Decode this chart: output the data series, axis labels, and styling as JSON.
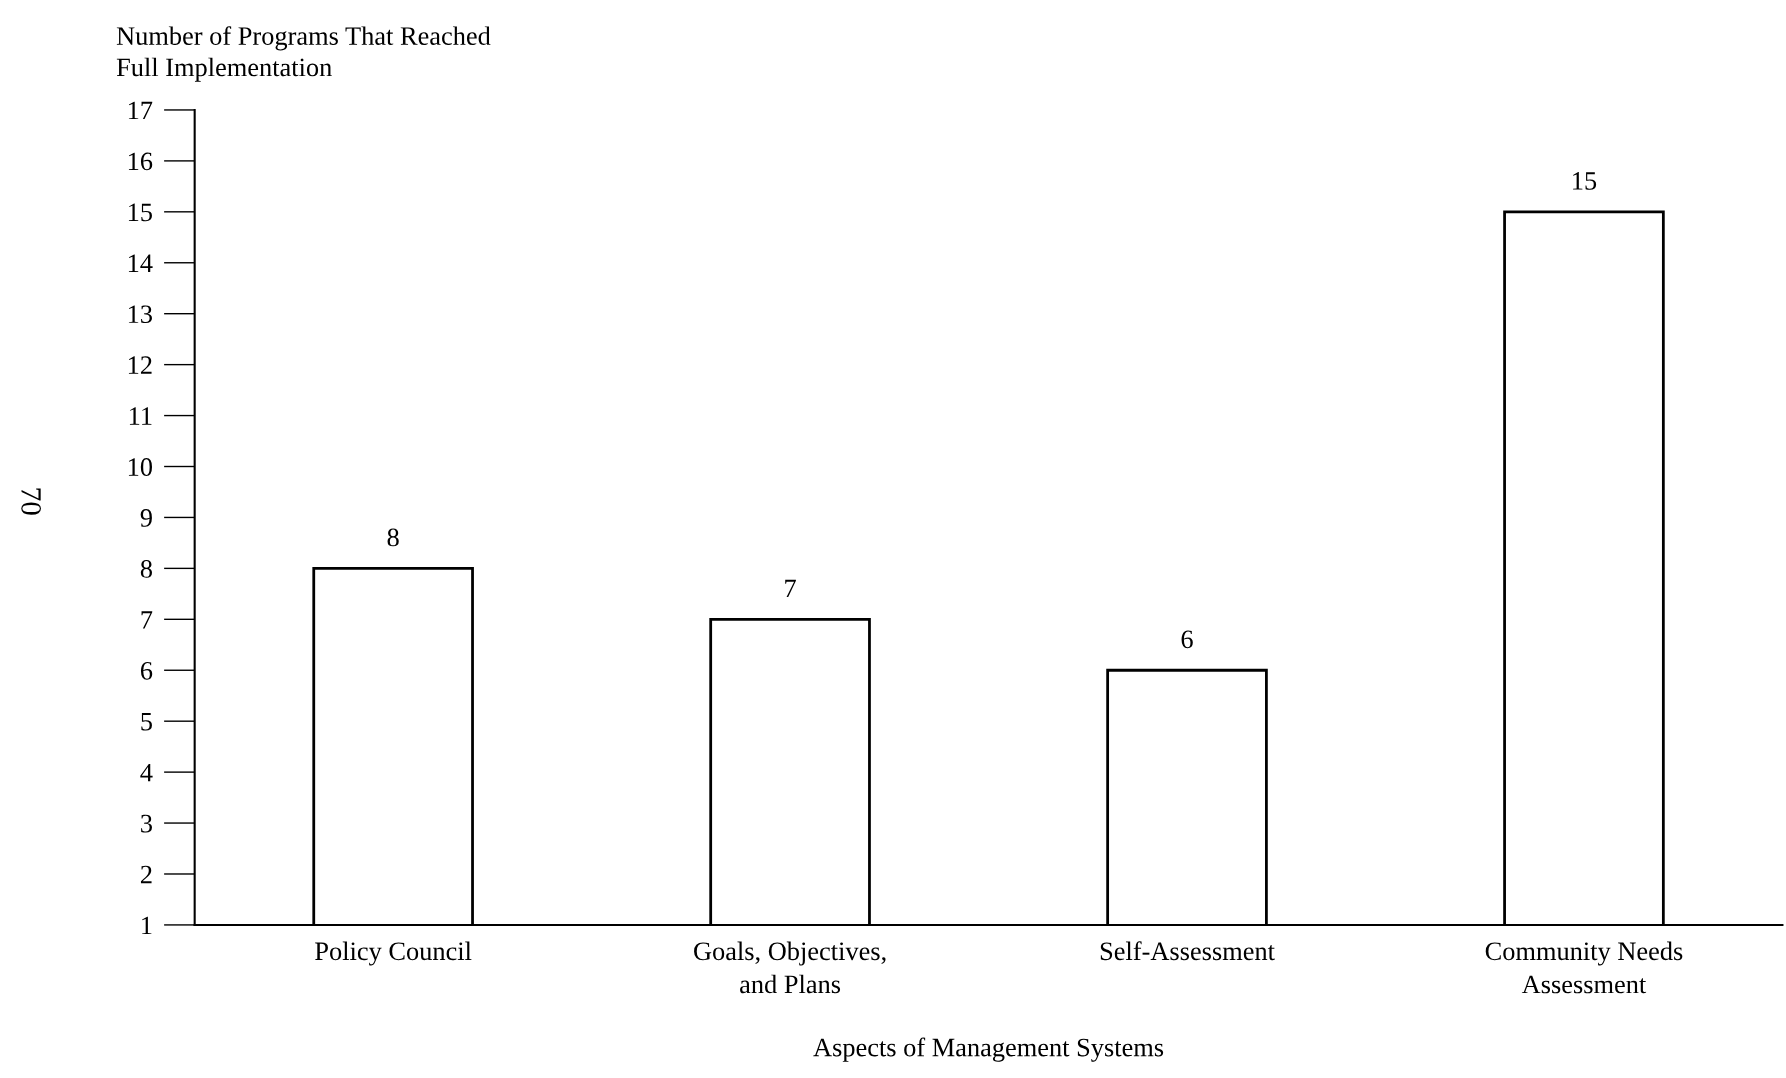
{
  "chart_data": {
    "type": "bar",
    "ylabel": "Number of Programs That Reached\nFull Implementation",
    "xlabel": "Aspects of Management Systems",
    "categories": [
      "Policy Council",
      "Goals, Objectives,\nand Plans",
      "Self-Assessment",
      "Community Needs\nAssessment"
    ],
    "values": [
      8,
      7,
      6,
      15
    ],
    "color": "#ffffff",
    "data_labels": true,
    "ylim": [
      1,
      17
    ],
    "yticks": [
      1,
      2,
      3,
      4,
      5,
      6,
      7,
      8,
      9,
      10,
      11,
      12,
      13,
      14,
      15,
      16,
      17
    ],
    "grid": false,
    "legend": false,
    "annotations": [
      "70"
    ]
  }
}
